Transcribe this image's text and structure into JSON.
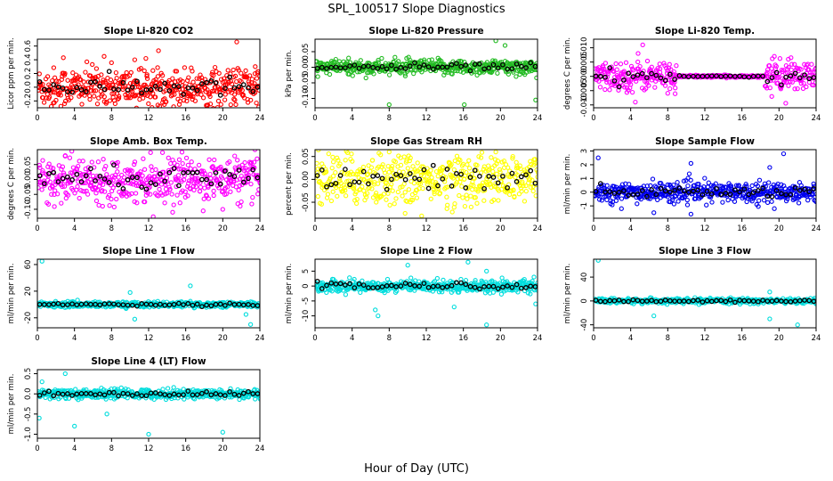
{
  "figure": {
    "title": "SPL_100517  Slope Diagnostics",
    "xlabel": "Hour of Day (UTC)"
  },
  "chart_data": [
    {
      "type": "scatter",
      "title": "Slope Li-820 CO2",
      "ylabel": "Licor ppm per min.",
      "xlim": [
        0,
        24
      ],
      "ylim": [
        -0.3,
        0.7
      ],
      "xticks": [
        0,
        4,
        8,
        12,
        16,
        20,
        24
      ],
      "yticks": [
        -0.2,
        0,
        0.2,
        0.4,
        0.6
      ],
      "ytick_labels": [
        "-0.2",
        "0.0",
        "0.2",
        "0.4",
        "0.6"
      ],
      "color": "#ff0000",
      "center": 0.0,
      "spread": 0.14,
      "outliers": [
        [
          21.5,
          0.66
        ],
        [
          7.2,
          0.45
        ],
        [
          2.8,
          0.43
        ],
        [
          10.5,
          0.4
        ],
        [
          23.5,
          0.3
        ],
        [
          1.5,
          -0.28
        ],
        [
          13,
          -0.26
        ]
      ]
    },
    {
      "type": "scatter",
      "title": "Slope Li-820 Pressure",
      "ylabel": "kPa per min.",
      "xlim": [
        0,
        24
      ],
      "ylim": [
        -0.13,
        0.09
      ],
      "xticks": [
        0,
        4,
        8,
        12,
        16,
        20,
        24
      ],
      "yticks": [
        -0.1,
        -0.05,
        0,
        0.05
      ],
      "ytick_labels": [
        "-0.10",
        "-0.05",
        "0.00",
        "0.05"
      ],
      "color": "#22bb22",
      "center": 0.0,
      "spread": 0.012,
      "outliers": [
        [
          19.5,
          0.085
        ],
        [
          20.5,
          0.07
        ],
        [
          8,
          -0.12
        ],
        [
          16.1,
          -0.12
        ],
        [
          23.8,
          -0.105
        ],
        [
          0.3,
          -0.03
        ]
      ]
    },
    {
      "type": "scatter",
      "title": "Slope Li-820 Temp.",
      "ylabel": "degrees C per min.",
      "xlim": [
        0,
        24
      ],
      "ylim": [
        -0.011,
        0.013
      ],
      "xticks": [
        0,
        4,
        8,
        12,
        16,
        20,
        24
      ],
      "yticks": [
        -0.01,
        -0.005,
        0,
        0.005,
        0.01
      ],
      "ytick_labels": [
        "-0.010",
        "-0.005",
        "0.000",
        "0.005",
        "0.010"
      ],
      "color": "#ff00ff",
      "center": 0.0,
      "spread": 0.0025,
      "quiet": [
        9,
        18.5
      ],
      "outliers": [
        [
          5.3,
          0.011
        ],
        [
          4.5,
          -0.009
        ],
        [
          4.8,
          0.008
        ],
        [
          19.5,
          0.007
        ],
        [
          21,
          0.006
        ]
      ]
    },
    {
      "type": "scatter",
      "title": "Slope Amb. Box Temp.",
      "ylabel": "degrees C per min.",
      "xlim": [
        0,
        24
      ],
      "ylim": [
        -0.13,
        0.1
      ],
      "xticks": [
        0,
        4,
        8,
        12,
        16,
        20,
        24
      ],
      "yticks": [
        -0.1,
        -0.05,
        0,
        0.05
      ],
      "ytick_labels": [
        "-0.10",
        "-0.05",
        "0.00",
        "0.05"
      ],
      "color": "#ff00ff",
      "center": 0.0,
      "spread": 0.035,
      "outliers": [
        [
          13.5,
          0.09
        ],
        [
          12.5,
          -0.125
        ],
        [
          3,
          0.08
        ],
        [
          20,
          -0.1
        ]
      ]
    },
    {
      "type": "scatter",
      "title": "Slope Gas Stream RH",
      "ylabel": "percent per min.",
      "xlim": [
        0,
        24
      ],
      "ylim": [
        -0.085,
        0.065
      ],
      "xticks": [
        0,
        4,
        8,
        12,
        16,
        20,
        24
      ],
      "yticks": [
        -0.05,
        0,
        0.05
      ],
      "ytick_labels": [
        "-0.05",
        "0.00",
        "0.05"
      ],
      "color": "#ffff00",
      "center": 0.0,
      "spread": 0.028,
      "outliers": [
        [
          11.5,
          -0.08
        ],
        [
          8,
          0.06
        ],
        [
          19.5,
          0.06
        ]
      ]
    },
    {
      "type": "scatter",
      "title": "Slope Sample Flow",
      "ylabel": "ml/min per min.",
      "xlim": [
        0,
        24
      ],
      "ylim": [
        -1.9,
        3.1
      ],
      "xticks": [
        0,
        4,
        8,
        12,
        16,
        20,
        24
      ],
      "yticks": [
        -1,
        0,
        1,
        2,
        3
      ],
      "ytick_labels": [
        "-1",
        "0",
        "1",
        "2",
        "3"
      ],
      "color": "#0000ee",
      "center": 0.0,
      "spread": 0.35,
      "outliers": [
        [
          20.5,
          2.8
        ],
        [
          0.5,
          2.5
        ],
        [
          10.5,
          2.1
        ],
        [
          19,
          1.8
        ],
        [
          6.5,
          -1.5
        ],
        [
          10.5,
          -1.6
        ],
        [
          19.5,
          -1.2
        ],
        [
          3,
          -1.2
        ]
      ]
    },
    {
      "type": "scatter",
      "title": "Slope Line 1 Flow",
      "ylabel": "ml/min per min.",
      "xlim": [
        0,
        24
      ],
      "ylim": [
        -35,
        68
      ],
      "xticks": [
        0,
        4,
        8,
        12,
        16,
        20,
        24
      ],
      "yticks": [
        -20,
        20,
        60
      ],
      "ytick_labels": [
        "-20",
        "20",
        "60"
      ],
      "color": "#00dddd",
      "center": 0.0,
      "spread": 2.0,
      "outliers": [
        [
          0.5,
          65
        ],
        [
          16.5,
          28
        ],
        [
          10,
          18
        ],
        [
          10.5,
          -22
        ],
        [
          23,
          -30
        ],
        [
          22.5,
          -15
        ]
      ]
    },
    {
      "type": "scatter",
      "title": "Slope Line 2 Flow",
      "ylabel": "ml/min per min.",
      "xlim": [
        0,
        24
      ],
      "ylim": [
        -14,
        9
      ],
      "xticks": [
        0,
        4,
        8,
        12,
        16,
        20,
        24
      ],
      "yticks": [
        -10,
        -5,
        0,
        5
      ],
      "ytick_labels": [
        "-10",
        "-5",
        "0",
        "5"
      ],
      "color": "#00dddd",
      "center": 0.0,
      "spread": 1.0,
      "outliers": [
        [
          16.5,
          8
        ],
        [
          10,
          7
        ],
        [
          18.5,
          5
        ],
        [
          6.5,
          -8
        ],
        [
          6.8,
          -10
        ],
        [
          18.5,
          -13
        ],
        [
          23.8,
          -6
        ],
        [
          15,
          -7
        ]
      ]
    },
    {
      "type": "scatter",
      "title": "Slope Line 3 Flow",
      "ylabel": "ml/min per min.",
      "xlim": [
        0,
        24
      ],
      "ylim": [
        -45,
        70
      ],
      "xticks": [
        0,
        4,
        8,
        12,
        16,
        20,
        24
      ],
      "yticks": [
        -40,
        0,
        40
      ],
      "ytick_labels": [
        "-40",
        "0",
        "40"
      ],
      "color": "#00dddd",
      "center": 0.0,
      "spread": 2.0,
      "outliers": [
        [
          0.5,
          68
        ],
        [
          19,
          -30
        ],
        [
          22,
          -40
        ],
        [
          6.5,
          -25
        ],
        [
          19,
          15
        ]
      ]
    },
    {
      "type": "scatter",
      "title": "Slope Line 4 (LT) Flow",
      "ylabel": "ml/min per min.",
      "xlim": [
        0,
        24
      ],
      "ylim": [
        -1.1,
        0.6
      ],
      "xticks": [
        0,
        4,
        8,
        12,
        16,
        20,
        24
      ],
      "yticks": [
        -1,
        -0.5,
        0,
        0.5
      ],
      "ytick_labels": [
        "-1.0",
        "-0.5",
        "0.0",
        "0.5"
      ],
      "color": "#00dddd",
      "center": 0.0,
      "spread": 0.06,
      "outliers": [
        [
          3,
          0.5
        ],
        [
          12,
          -1.0
        ],
        [
          20,
          -0.95
        ],
        [
          4,
          -0.8
        ],
        [
          0.2,
          -0.6
        ],
        [
          7.5,
          -0.5
        ],
        [
          0.5,
          0.3
        ]
      ]
    }
  ]
}
